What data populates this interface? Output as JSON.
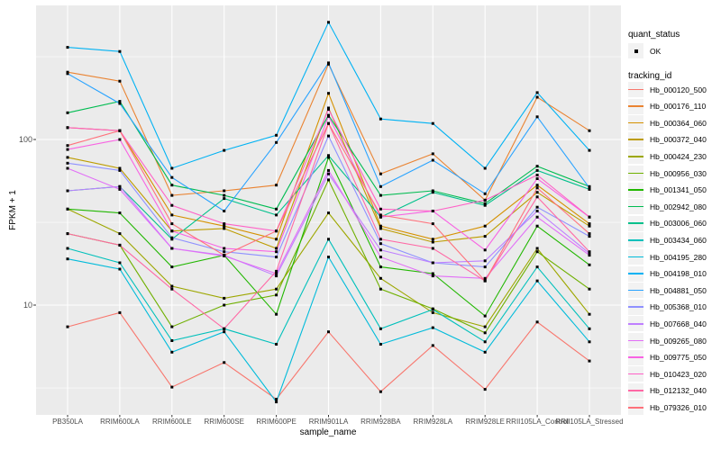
{
  "figure": {
    "y_axis_title": "FPKM + 1",
    "x_axis_title": "sample_name",
    "legend": {
      "quant_status_title": "quant_status",
      "quant_status_items": [
        {
          "label": "OK",
          "marker": "black-point"
        }
      ],
      "tracking_title": "tracking_id"
    }
  },
  "chart_data": {
    "type": "line",
    "y_scale": "log10",
    "title": "",
    "xlabel": "sample_name",
    "ylabel": "FPKM + 1",
    "legend_position": "right",
    "panel_background": "#EBEBEB",
    "gridline_color": "#FFFFFF",
    "point_color": "#000000",
    "point_shape": "filled-square",
    "y_ticks": [
      {
        "label": "100",
        "value": 100
      },
      {
        "label": "10",
        "value": 10
      }
    ],
    "y_major_gridlines": [
      100,
      10
    ],
    "y_minor_gridlines": [
      316,
      31.6,
      3.16
    ],
    "y_range_approx": [
      2.5,
      550
    ],
    "categories": [
      "PB350LA",
      "RRIM600LA",
      "RRIM600LE",
      "RRIM600SE",
      "RRIM600PE",
      "RRIM901LA",
      "RRIM928BA",
      "RRIM928LA",
      "RRIM928LE",
      "RRII105LA_Control",
      "RRII105LA_Stressed"
    ],
    "series": [
      {
        "name": "Hb_000120_500",
        "color": "#F8766D",
        "values": [
          7.4,
          9.0,
          3.2,
          4.5,
          2.7,
          6.9,
          3.0,
          5.7,
          3.1,
          7.9,
          4.6
        ]
      },
      {
        "name": "Hb_000176_110",
        "color": "#EA8331",
        "values": [
          255,
          225,
          46,
          49,
          53,
          285,
          62,
          82,
          43,
          180,
          113
        ]
      },
      {
        "name": "Hb_000364_060",
        "color": "#D59100",
        "values": [
          118,
          113,
          35,
          30,
          25,
          190,
          30,
          25,
          30,
          53,
          31
        ]
      },
      {
        "name": "Hb_000372_040",
        "color": "#BD9C00",
        "values": [
          78,
          67,
          28,
          29,
          22,
          155,
          29,
          24,
          26,
          48,
          30
        ]
      },
      {
        "name": "Hb_000424_230",
        "color": "#9DA700",
        "values": [
          38,
          27,
          13,
          11,
          12.5,
          36,
          14.5,
          9,
          7.4,
          22,
          8.8
        ]
      },
      {
        "name": "Hb_000956_030",
        "color": "#6FB000",
        "values": [
          27,
          23,
          7.4,
          10,
          11.5,
          57,
          12.5,
          9.5,
          6.8,
          21,
          12.5
        ]
      },
      {
        "name": "Hb_001341_050",
        "color": "#21B700",
        "values": [
          38,
          36,
          17,
          20,
          8.8,
          78,
          17,
          15.5,
          8.6,
          30,
          17.5
        ]
      },
      {
        "name": "Hb_002942_080",
        "color": "#00BC51",
        "values": [
          145,
          170,
          53,
          46,
          38,
          140,
          46,
          49,
          41,
          69,
          52
        ]
      },
      {
        "name": "Hb_003006_060",
        "color": "#00C08B",
        "values": [
          49,
          52,
          25,
          44,
          35,
          80,
          34,
          48,
          40,
          65,
          50
        ]
      },
      {
        "name": "Hb_003434_060",
        "color": "#00C0BB",
        "values": [
          22,
          18,
          6.1,
          7.2,
          5.8,
          25,
          7.2,
          9.4,
          6.0,
          17,
          7.2
        ]
      },
      {
        "name": "Hb_004195_280",
        "color": "#00BBDA",
        "values": [
          19,
          16.5,
          5.2,
          6.9,
          2.6,
          19.5,
          5.8,
          7.3,
          5.2,
          14,
          6.0
        ]
      },
      {
        "name": "Hb_004198_010",
        "color": "#00B2F3",
        "values": [
          360,
          340,
          67,
          86,
          106,
          510,
          133,
          125,
          67,
          192,
          86
        ]
      },
      {
        "name": "Hb_004881_050",
        "color": "#29A3FF",
        "values": [
          250,
          165,
          59,
          37,
          96,
          290,
          52,
          75,
          47,
          137,
          51
        ]
      },
      {
        "name": "Hb_005368_010",
        "color": "#8F91FF",
        "values": [
          72,
          65,
          25.5,
          21,
          19.5,
          105,
          23.5,
          18,
          17,
          39,
          26
        ]
      },
      {
        "name": "Hb_007668_040",
        "color": "#BF80FF",
        "values": [
          49,
          52,
          22,
          20,
          15,
          62,
          21.5,
          18,
          18.5,
          37,
          20.5
        ]
      },
      {
        "name": "Hb_009265_080",
        "color": "#E26EF7",
        "values": [
          67,
          50,
          22,
          19.8,
          15.5,
          65,
          19.5,
          15,
          14.5,
          34,
          20
        ]
      },
      {
        "name": "Hb_009775_050",
        "color": "#F863E3",
        "values": [
          87,
          100,
          28,
          22,
          21,
          138,
          34,
          37,
          21.5,
          58,
          34
        ]
      },
      {
        "name": "Hb_010423_020",
        "color": "#FF61C7",
        "values": [
          118,
          113,
          40,
          31,
          28,
          152,
          38,
          37,
          43,
          61,
          34
        ]
      },
      {
        "name": "Hb_012132_040",
        "color": "#FF68A5",
        "values": [
          27,
          23,
          12.5,
          7.2,
          16,
          125,
          25,
          22,
          14,
          45,
          21
        ]
      },
      {
        "name": "Hb_079326_010",
        "color": "#FF717B",
        "values": [
          92,
          113,
          31,
          20,
          28,
          125,
          35,
          31,
          14,
          51,
          27
        ]
      }
    ]
  }
}
